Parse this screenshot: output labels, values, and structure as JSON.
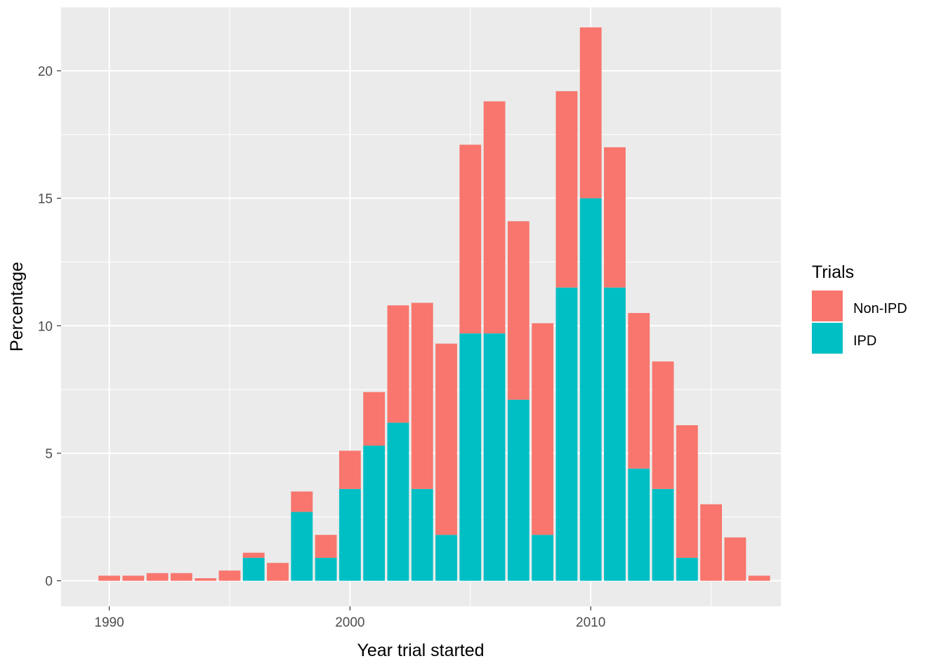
{
  "chart_data": {
    "type": "bar",
    "stacked": true,
    "xlabel": "Year trial started",
    "ylabel": "Percentage",
    "xlim": [
      1988,
      2017.9
    ],
    "ylim": [
      -1,
      22.5
    ],
    "x_ticks": [
      1990,
      2000,
      2010
    ],
    "y_ticks": [
      0,
      5,
      10,
      15,
      20
    ],
    "grid": true,
    "legend": {
      "title": "Trials",
      "position": "right"
    },
    "x": [
      1990,
      1991,
      1992,
      1993,
      1994,
      1995,
      1996,
      1997,
      1998,
      1999,
      2000,
      2001,
      2002,
      2003,
      2004,
      2005,
      2006,
      2007,
      2008,
      2009,
      2010,
      2011,
      2012,
      2013,
      2014,
      2015,
      2016,
      2017
    ],
    "series": [
      {
        "name": "IPD",
        "color": "#00BFC4",
        "values": [
          0,
          0,
          0,
          0,
          0,
          0,
          0.9,
          0,
          2.7,
          0.9,
          3.6,
          5.3,
          6.2,
          3.6,
          1.8,
          9.7,
          9.7,
          7.1,
          1.8,
          11.5,
          15.0,
          11.5,
          4.4,
          3.6,
          0.9,
          0,
          0,
          0
        ]
      },
      {
        "name": "Non-IPD",
        "color": "#F8766D",
        "values": [
          0.2,
          0.2,
          0.3,
          0.3,
          0.1,
          0.4,
          0.2,
          0.7,
          0.8,
          0.9,
          1.5,
          2.1,
          4.6,
          7.3,
          7.5,
          7.4,
          9.1,
          7.0,
          8.3,
          7.7,
          6.7,
          5.5,
          6.1,
          5.0,
          5.2,
          3.0,
          1.7,
          0.2
        ]
      }
    ]
  }
}
